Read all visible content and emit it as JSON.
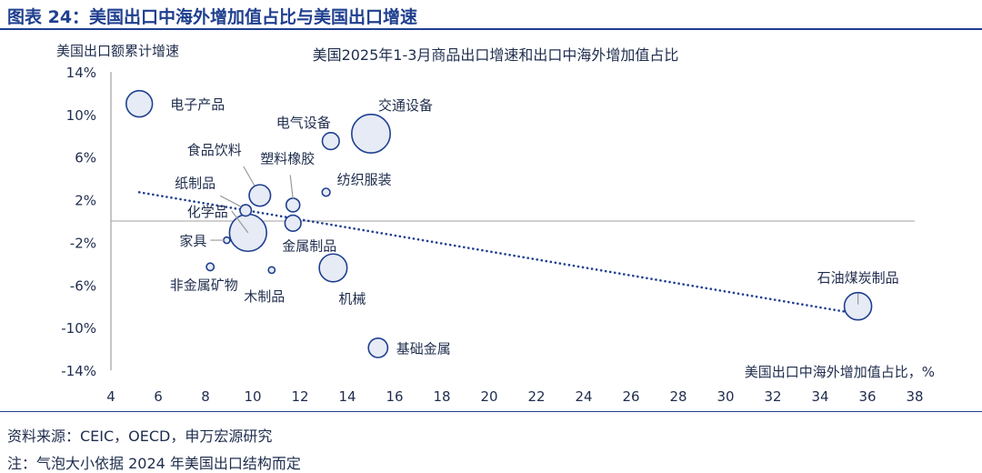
{
  "figure": {
    "title": "图表 24：美国出口中海外增加值占比与美国出口增速",
    "source": "资料来源：CEIC，OECD，申万宏源研究",
    "note": "注：气泡大小依据 2024 年美国出口结构而定"
  },
  "chart_data": {
    "type": "scatter",
    "bubble": true,
    "title": "美国2025年1-3月商品出口增速和出口中海外增加值占比",
    "xlabel": "美国出口中海外增加值占比，%",
    "ylabel": "美国出口额累计增速",
    "xlim": [
      4,
      38
    ],
    "ylim": [
      -14,
      14
    ],
    "xticks": [
      4,
      6,
      8,
      10,
      12,
      14,
      16,
      18,
      20,
      22,
      24,
      26,
      28,
      30,
      32,
      34,
      36,
      38
    ],
    "yticks": [
      14,
      10,
      6,
      2,
      -2,
      -6,
      -10,
      -14
    ],
    "ytick_labels": [
      "14%",
      "10%",
      "6%",
      "2%",
      "-2%",
      "-6%",
      "-10%",
      "-14%"
    ],
    "grid": false,
    "zero_line": true,
    "colors": {
      "bubble_fill": "#e6ebf5",
      "bubble_stroke": "#1f3f8f",
      "axis": "#8c8c8c",
      "trend": "#1f3f8f"
    },
    "points": [
      {
        "name": "电子产品",
        "x": 5.2,
        "y": 11.0,
        "size": 2.4
      },
      {
        "name": "交通设备",
        "x": 15.0,
        "y": 8.2,
        "size": 5.2
      },
      {
        "name": "电气设备",
        "x": 13.3,
        "y": 7.5,
        "size": 1.0
      },
      {
        "name": "食品饮料",
        "x": 10.3,
        "y": 2.4,
        "size": 1.6
      },
      {
        "name": "塑料橡胶",
        "x": 11.7,
        "y": 1.5,
        "size": 0.65
      },
      {
        "name": "纺织服装",
        "x": 13.1,
        "y": 2.7,
        "size": 0.22
      },
      {
        "name": "纸制品",
        "x": 9.7,
        "y": 1.0,
        "size": 0.45
      },
      {
        "name": "化学品",
        "x": 9.8,
        "y": -1.1,
        "size": 4.8
      },
      {
        "name": "金属制品",
        "x": 11.7,
        "y": -0.2,
        "size": 0.9
      },
      {
        "name": "家具",
        "x": 8.9,
        "y": -1.8,
        "size": 0.05
      },
      {
        "name": "非金属矿物",
        "x": 8.2,
        "y": -4.3,
        "size": 0.2
      },
      {
        "name": "木制品",
        "x": 10.8,
        "y": -4.6,
        "size": 0.15
      },
      {
        "name": "机械",
        "x": 13.4,
        "y": -4.4,
        "size": 2.7
      },
      {
        "name": "基础金属",
        "x": 15.3,
        "y": -11.9,
        "size": 1.3
      },
      {
        "name": "石油煤炭制品",
        "x": 35.6,
        "y": -8.0,
        "size": 2.6
      }
    ],
    "trendline": {
      "type": "linear",
      "from": [
        5.2,
        2.7
      ],
      "to": [
        35.3,
        -8.6
      ]
    }
  }
}
